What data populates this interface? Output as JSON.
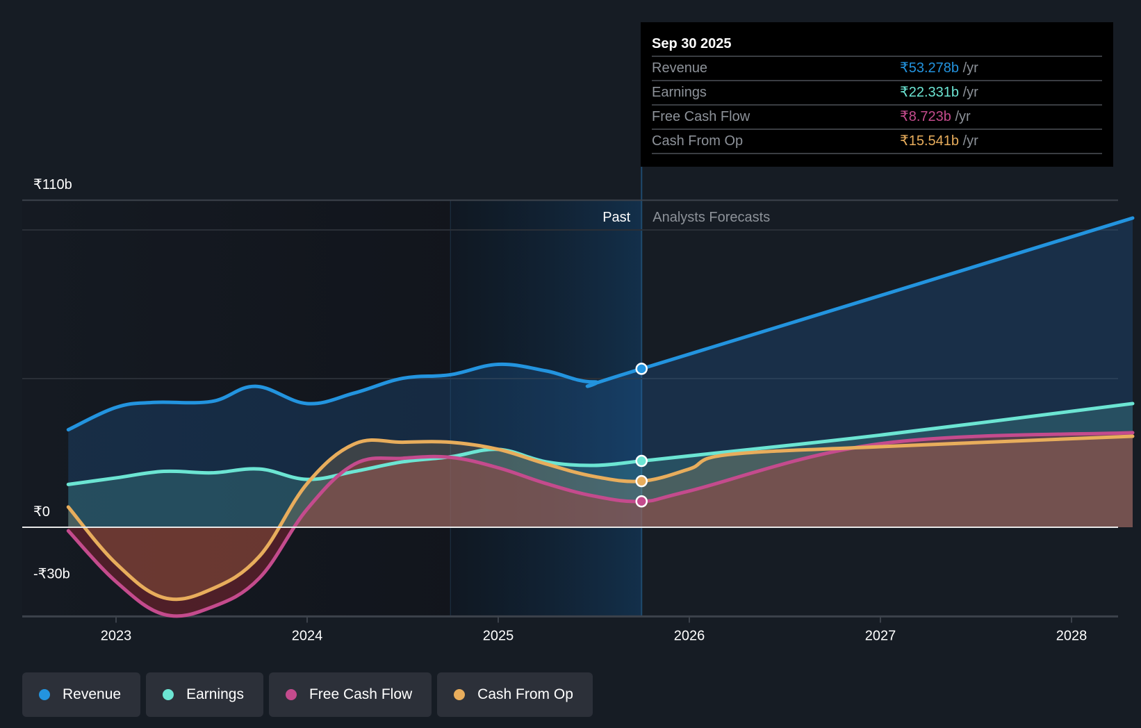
{
  "tooltip": {
    "date": "Sep 30 2025",
    "rows": [
      {
        "label": "Revenue",
        "value": "₹53.278b",
        "unit": " /yr",
        "color": "#2394df"
      },
      {
        "label": "Earnings",
        "value": "₹22.331b",
        "unit": " /yr",
        "color": "#6ce5d3"
      },
      {
        "label": "Free Cash Flow",
        "value": "₹8.723b",
        "unit": " /yr",
        "color": "#c44b8d"
      },
      {
        "label": "Cash From Op",
        "value": "₹15.541b",
        "unit": " /yr",
        "color": "#e8ad5c"
      }
    ]
  },
  "legend": [
    {
      "label": "Revenue",
      "color": "#2394df"
    },
    {
      "label": "Earnings",
      "color": "#6ce5d3"
    },
    {
      "label": "Free Cash Flow",
      "color": "#c44b8d"
    },
    {
      "label": "Cash From Op",
      "color": "#e8ad5c"
    }
  ],
  "chart_data": {
    "type": "line",
    "title": "",
    "xlabel": "",
    "ylabel": "",
    "currency": "₹",
    "y_unit": "b",
    "ylim": [
      -30,
      110
    ],
    "xlim": [
      2022.6,
      2028.32
    ],
    "y_tick_labels": [
      {
        "value": 110,
        "label": "₹110b"
      },
      {
        "value": 0,
        "label": "₹0"
      },
      {
        "value": -30,
        "label": "-₹30b"
      }
    ],
    "gridlines": [
      110,
      100,
      50,
      0,
      -30
    ],
    "x_tick_labels": [
      {
        "value": 2023,
        "label": "2023"
      },
      {
        "value": 2024,
        "label": "2024"
      },
      {
        "value": 2025,
        "label": "2025"
      },
      {
        "value": 2026,
        "label": "2026"
      },
      {
        "value": 2027,
        "label": "2027"
      },
      {
        "value": 2028,
        "label": "2028"
      }
    ],
    "past_region": {
      "start": 2024.75,
      "end": 2025.75,
      "label": "Past"
    },
    "forecast_label": "Analysts Forecasts",
    "highlight_x": 2025.75,
    "legend_position": "bottom-left",
    "series": [
      {
        "name": "Revenue",
        "color": "#2394df",
        "points": [
          [
            2022.75,
            32.8
          ],
          [
            2023.0,
            40.3
          ],
          [
            2023.2,
            42.0
          ],
          [
            2023.5,
            42.3
          ],
          [
            2023.73,
            47.4
          ],
          [
            2024.0,
            41.6
          ],
          [
            2024.25,
            45.2
          ],
          [
            2024.5,
            50.1
          ],
          [
            2024.75,
            51.3
          ],
          [
            2025.0,
            54.8
          ],
          [
            2025.25,
            52.6
          ],
          [
            2025.5,
            48.9
          ],
          [
            2025.75,
            53.3
          ],
          [
            2028.32,
            104.0
          ]
        ]
      },
      {
        "name": "Earnings",
        "color": "#6ce5d3",
        "points": [
          [
            2022.75,
            14.4
          ],
          [
            2023.0,
            16.6
          ],
          [
            2023.25,
            18.8
          ],
          [
            2023.5,
            18.3
          ],
          [
            2023.75,
            19.6
          ],
          [
            2024.0,
            16.1
          ],
          [
            2024.25,
            18.8
          ],
          [
            2024.5,
            22.0
          ],
          [
            2024.75,
            23.7
          ],
          [
            2025.0,
            26.2
          ],
          [
            2025.25,
            22.0
          ],
          [
            2025.5,
            20.8
          ],
          [
            2025.75,
            22.3
          ],
          [
            2026.0,
            24.0
          ],
          [
            2027.0,
            31.0
          ],
          [
            2028.32,
            41.6
          ]
        ]
      },
      {
        "name": "Free Cash Flow",
        "color": "#c44b8d",
        "points": [
          [
            2022.75,
            -1.2
          ],
          [
            2023.0,
            -18.3
          ],
          [
            2023.25,
            -29.3
          ],
          [
            2023.5,
            -26.9
          ],
          [
            2023.75,
            -17.1
          ],
          [
            2024.0,
            6.1
          ],
          [
            2024.25,
            21.3
          ],
          [
            2024.5,
            23.2
          ],
          [
            2024.75,
            23.5
          ],
          [
            2025.0,
            20.0
          ],
          [
            2025.25,
            14.7
          ],
          [
            2025.5,
            10.5
          ],
          [
            2025.75,
            8.7
          ],
          [
            2026.0,
            12.2
          ],
          [
            2027.0,
            28.1
          ],
          [
            2028.32,
            31.8
          ]
        ]
      },
      {
        "name": "Cash From Op",
        "color": "#e8ad5c",
        "points": [
          [
            2022.75,
            6.8
          ],
          [
            2023.0,
            -12.2
          ],
          [
            2023.25,
            -23.7
          ],
          [
            2023.5,
            -20.8
          ],
          [
            2023.75,
            -9.8
          ],
          [
            2024.0,
            14.7
          ],
          [
            2024.25,
            28.1
          ],
          [
            2024.5,
            28.6
          ],
          [
            2024.75,
            28.6
          ],
          [
            2025.0,
            26.2
          ],
          [
            2025.25,
            21.3
          ],
          [
            2025.5,
            17.1
          ],
          [
            2025.75,
            15.5
          ],
          [
            2026.0,
            19.6
          ],
          [
            2026.2,
            24.4
          ],
          [
            2027.0,
            27.1
          ],
          [
            2028.32,
            30.6
          ]
        ]
      }
    ]
  }
}
